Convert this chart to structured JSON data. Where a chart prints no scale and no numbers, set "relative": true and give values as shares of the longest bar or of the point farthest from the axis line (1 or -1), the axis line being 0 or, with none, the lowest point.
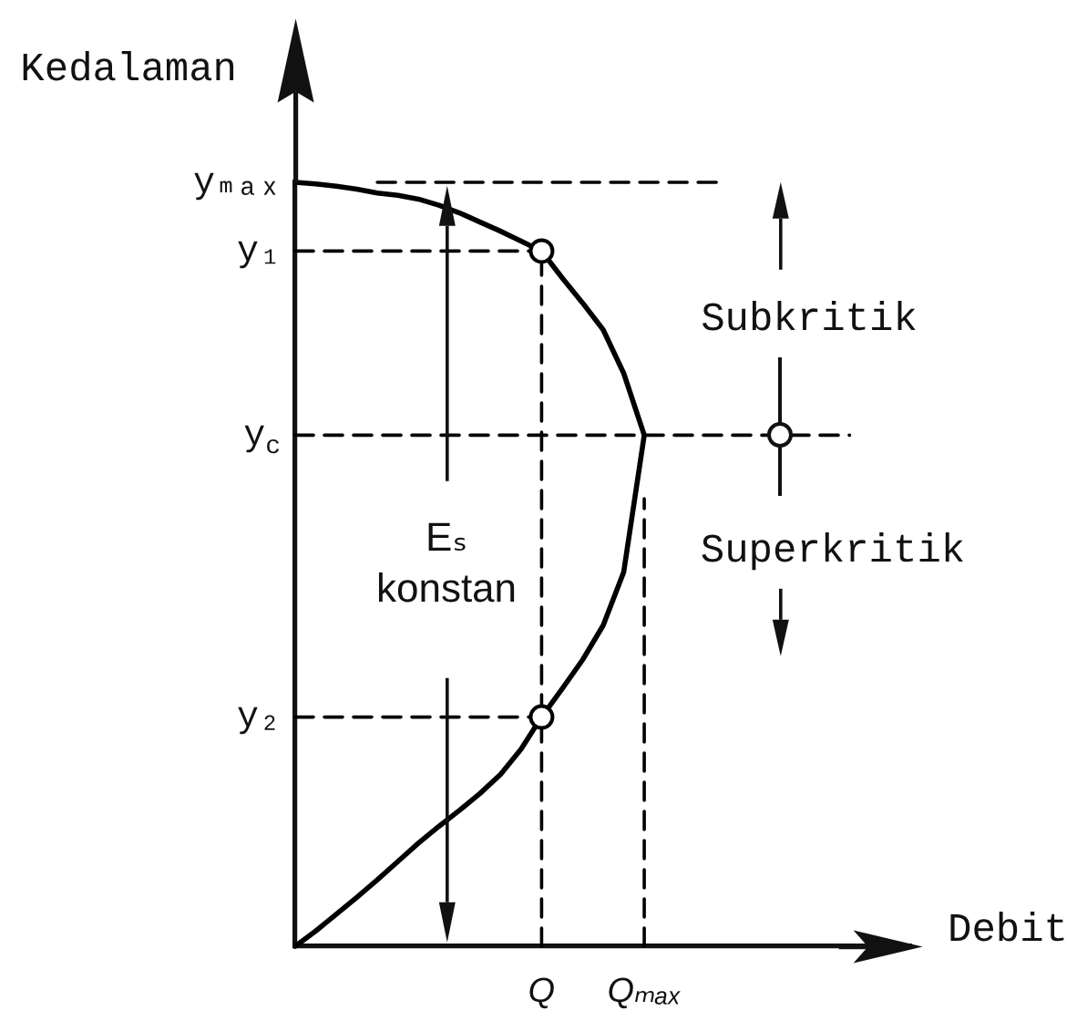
{
  "chart_data": {
    "type": "line",
    "relative": true,
    "xlabel": "Debit",
    "ylabel": "Kedalaman",
    "grid": false,
    "legend": false,
    "marker": "none",
    "line_style": "solid",
    "categories": [
      null,
      null,
      null,
      null,
      null,
      null,
      null,
      null,
      null,
      null,
      null,
      null,
      "Q",
      null,
      null,
      null,
      null,
      "Qₘₐₓ",
      null,
      null,
      null,
      null,
      null,
      null,
      null,
      null,
      null,
      null,
      null,
      null,
      null
    ],
    "series": [
      {
        "color": "#000000",
        "values": [
          0,
          0.02,
          0.042,
          0.064,
          0.087,
          0.111,
          0.135,
          0.157,
          0.178,
          0.2,
          0.225,
          0.258,
          0.3,
          0.337,
          0.375,
          0.42,
          0.49,
          0.669,
          null,
          null,
          null,
          null,
          null,
          null,
          null,
          null,
          null,
          null,
          null,
          null,
          null
        ]
      },
      {
        "color": "#000000",
        "values": [
          1,
          0.998,
          0.995,
          0.991,
          0.986,
          0.983,
          0.978,
          0.97,
          0.96,
          0.948,
          0.936,
          0.923,
          0.91,
          0.875,
          0.842,
          0.807,
          0.75,
          0.669,
          null,
          null,
          null,
          null,
          null,
          null,
          null,
          null,
          null,
          null,
          null,
          null,
          null
        ]
      },
      {
        "color": "#000000",
        "line_style": "dashed",
        "values": [
          null,
          null,
          null,
          null,
          1,
          1,
          1,
          1,
          1,
          1,
          1,
          1,
          1,
          1,
          1,
          1,
          1,
          1,
          1,
          1,
          1,
          1,
          null,
          null,
          null,
          null,
          null,
          null,
          null,
          null,
          null
        ]
      },
      {
        "name": "y₁",
        "color": "#000000",
        "line_style": "dashed",
        "values": [
          0.91,
          0.91,
          0.91,
          0.91,
          0.91,
          0.91,
          0.91,
          0.91,
          0.91,
          0.91,
          0.91,
          0.91,
          0.91,
          null,
          null,
          null,
          null,
          null,
          null,
          null,
          null,
          null,
          null,
          null,
          null,
          null,
          null,
          null,
          null,
          null,
          null
        ]
      },
      {
        "name": "y$_{c}$",
        "color": "#000000",
        "line_style": "dashed",
        "values": [
          0.669,
          0.669,
          0.669,
          0.669,
          0.669,
          0.669,
          0.669,
          0.669,
          0.669,
          0.669,
          0.669,
          0.669,
          0.669,
          0.669,
          0.669,
          0.669,
          0.669,
          0.669,
          0.669,
          0.669,
          0.669,
          0.669,
          0.669,
          0.669,
          0.669,
          0.669,
          0.669,
          0.669,
          null,
          null,
          null
        ]
      },
      {
        "name": "y₂",
        "color": "#000000",
        "line_style": "dashed",
        "values": [
          0.3,
          0.3,
          0.3,
          0.3,
          0.3,
          0.3,
          0.3,
          0.3,
          0.3,
          0.3,
          0.3,
          0.3,
          0.3,
          null,
          null,
          null,
          null,
          null,
          null,
          null,
          null,
          null,
          null,
          null,
          null,
          null,
          null,
          null,
          null,
          null,
          null
        ]
      },
      {
        "color": "#000000",
        "line_style": "dashed",
        "x": [
          "Q",
          "Q"
        ],
        "values": [
          0,
          0.91
        ]
      },
      {
        "color": "#000000",
        "line_style": "dashed",
        "x": [
          "Qₘₐₓ",
          "Qₘₐₓ"
        ],
        "values": [
          0,
          0.586
        ]
      },
      {
        "type": "scatter",
        "color": "#000000",
        "marker": "circle",
        "x": [
          "Q",
          "Q"
        ],
        "values": [
          0.91,
          0.3
        ]
      }
    ],
    "annotations": [
      "Eₛ\nkonstan",
      "Subkritik",
      "Superkritik",
      "yₘₐₓ"
    ]
  }
}
